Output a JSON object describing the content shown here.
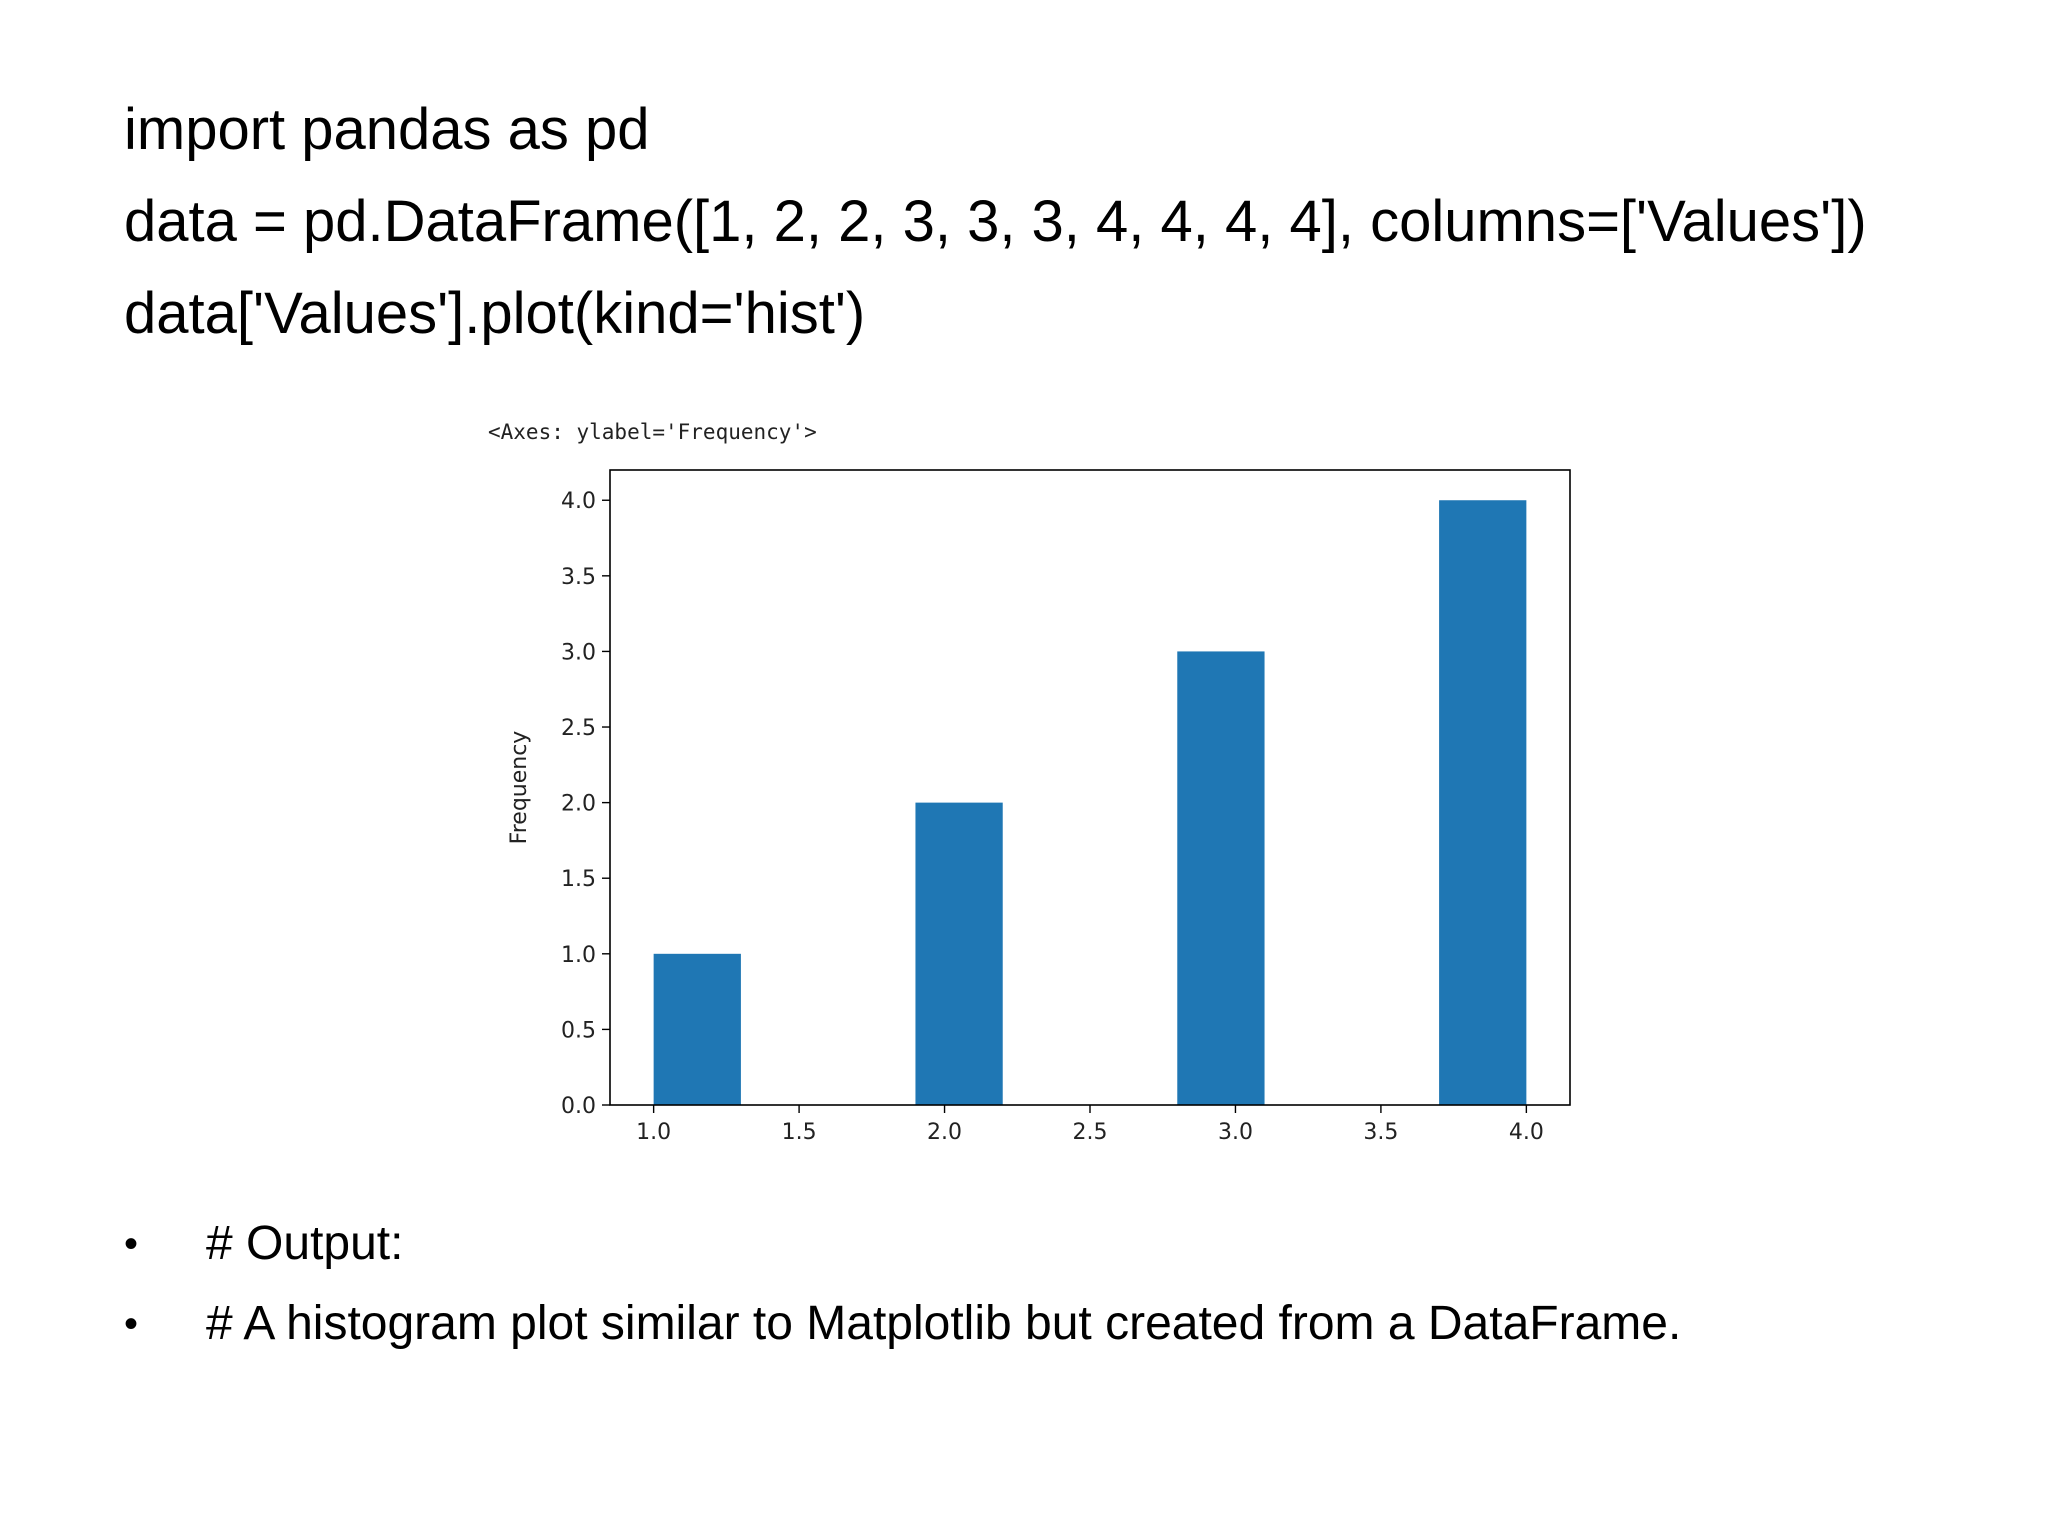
{
  "code": {
    "lines": [
      "import pandas as pd",
      "data = pd.DataFrame([1, 2, 2, 3, 3, 3, 4, 4, 4, 4], columns=['Values'])",
      "data['Values'].plot(kind='hist')"
    ]
  },
  "output_repr": "<Axes: ylabel='Frequency'>",
  "chart_data": {
    "type": "bar",
    "title": "",
    "xlabel": "",
    "ylabel": "Frequency",
    "xlim": [
      0.85,
      4.15
    ],
    "ylim": [
      0,
      4.2
    ],
    "xticks": [
      "1.0",
      "1.5",
      "2.0",
      "2.5",
      "3.0",
      "3.5",
      "4.0"
    ],
    "yticks": [
      "0.0",
      "0.5",
      "1.0",
      "1.5",
      "2.0",
      "2.5",
      "3.0",
      "3.5",
      "4.0"
    ],
    "bins": [
      {
        "x0": 1.0,
        "x1": 1.3,
        "count": 1
      },
      {
        "x0": 1.3,
        "x1": 1.6,
        "count": 0
      },
      {
        "x0": 1.6,
        "x1": 1.9,
        "count": 0
      },
      {
        "x0": 1.9,
        "x1": 2.2,
        "count": 2
      },
      {
        "x0": 2.2,
        "x1": 2.5,
        "count": 0
      },
      {
        "x0": 2.5,
        "x1": 2.8,
        "count": 0
      },
      {
        "x0": 2.8,
        "x1": 3.1,
        "count": 3
      },
      {
        "x0": 3.1,
        "x1": 3.4,
        "count": 0
      },
      {
        "x0": 3.4,
        "x1": 3.7,
        "count": 0
      },
      {
        "x0": 3.7,
        "x1": 4.0,
        "count": 4
      }
    ],
    "bar_color": "#1f77b4",
    "grid": false,
    "legend": "none"
  },
  "bullets": [
    "# Output:",
    "# A histogram plot similar to Matplotlib but created from a DataFrame."
  ]
}
